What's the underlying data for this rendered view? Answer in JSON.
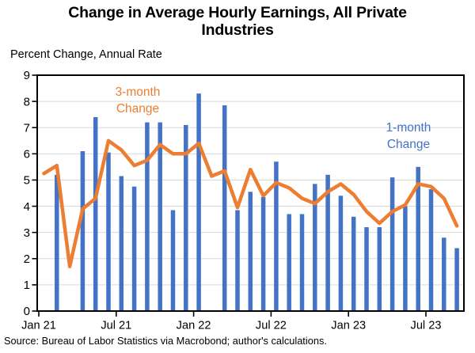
{
  "header": {
    "title_lines": [
      "Change in Average Hourly Earnings, All Private",
      "Industries"
    ],
    "subtitle": "Percent Change, Annual Rate"
  },
  "labels": {
    "three_month": {
      "line1": "3-month",
      "line2": "Change"
    },
    "one_month": {
      "line1": "1-month",
      "line2": "Change"
    }
  },
  "footer": {
    "source": "Source: Bureau of Labor Statistics via Macrobond; author's calculations."
  },
  "colors": {
    "bar": "#4472C4",
    "line": "#ED7D31",
    "grid": "#D9D9D9",
    "axis": "#000000",
    "background": "#FFFFFF"
  },
  "chart_data": {
    "type": "bar",
    "subtype": "combo bar + line",
    "title": "Change in Average Hourly Earnings, All Private Industries",
    "ylabel": "Percent Change, Annual Rate",
    "xlabel": "",
    "ylim": [
      0,
      9
    ],
    "yticks": [
      0,
      1,
      2,
      3,
      4,
      5,
      6,
      7,
      8,
      9
    ],
    "grid": "horizontal light-gray lines at each integer",
    "legend_position": "in-plot text annotations",
    "x_months": [
      "Jan 21",
      "Feb 21",
      "Mar 21",
      "Apr 21",
      "May 21",
      "Jun 21",
      "Jul 21",
      "Aug 21",
      "Sep 21",
      "Oct 21",
      "Nov 21",
      "Dec 21",
      "Jan 22",
      "Feb 22",
      "Mar 22",
      "Apr 22",
      "May 22",
      "Jun 22",
      "Jul 22",
      "Aug 22",
      "Sep 22",
      "Oct 22",
      "Nov 22",
      "Dec 22",
      "Jan 23",
      "Feb 23",
      "Mar 23",
      "Apr 23",
      "May 23",
      "Jun 23",
      "Jul 23",
      "Aug 23",
      "Sep 23"
    ],
    "xticks": [
      {
        "month_index": 0,
        "label": "Jan 21"
      },
      {
        "month_index": 6,
        "label": "Jul 21"
      },
      {
        "month_index": 12,
        "label": "Jan 22"
      },
      {
        "month_index": 18,
        "label": "Jul 22"
      },
      {
        "month_index": 24,
        "label": "Jan 23"
      },
      {
        "month_index": 30,
        "label": "Jul 23"
      }
    ],
    "series": [
      {
        "name": "1-month Change",
        "type": "bar",
        "color": "#4472C4",
        "values": [
          0,
          5.2,
          0,
          6.1,
          7.4,
          6.05,
          5.15,
          4.75,
          7.2,
          7.2,
          3.85,
          7.1,
          8.3,
          0,
          7.85,
          3.85,
          4.55,
          4.35,
          5.7,
          3.7,
          3.7,
          4.85,
          5.2,
          4.4,
          3.6,
          3.2,
          3.2,
          5.1,
          4.0,
          5.5,
          4.65,
          2.8,
          2.4
        ]
      },
      {
        "name": "3-month Change",
        "type": "line",
        "color": "#ED7D31",
        "values": [
          5.25,
          5.55,
          1.7,
          3.9,
          4.3,
          6.5,
          6.15,
          5.55,
          5.75,
          6.35,
          6.0,
          6.0,
          6.4,
          5.15,
          5.35,
          3.95,
          5.4,
          4.4,
          4.9,
          4.7,
          4.3,
          4.1,
          4.55,
          4.85,
          4.45,
          3.8,
          3.35,
          3.8,
          4.05,
          4.85,
          4.75,
          4.3,
          3.25
        ]
      }
    ]
  }
}
